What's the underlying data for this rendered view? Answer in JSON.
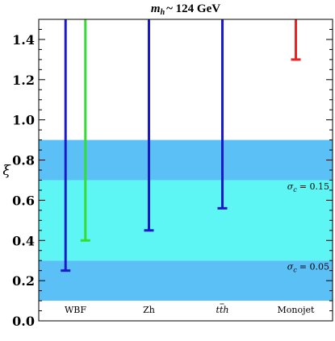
{
  "chart_data": {
    "type": "errorbar",
    "title": {
      "main": "m",
      "sub": "h",
      "rest": "~ 124 GeV"
    },
    "ylabel": "ξ",
    "xlabel": "",
    "ylim": [
      0.0,
      1.5
    ],
    "yticks": [
      "0.0",
      "0.2",
      "0.4",
      "0.6",
      "0.8",
      "1.0",
      "1.2",
      "1.4"
    ],
    "grid": false,
    "categories": [
      {
        "id": "wbf",
        "label": "WBF"
      },
      {
        "id": "zh",
        "label": "Zh"
      },
      {
        "id": "tth",
        "label": "tth",
        "parts": [
          "t",
          "t",
          "h"
        ]
      },
      {
        "id": "monojet",
        "label": "Monojet"
      }
    ],
    "bands": [
      {
        "from": 0.1,
        "to": 0.3,
        "color": "#5ac0f6"
      },
      {
        "from": 0.3,
        "to": 0.7,
        "color": "#5ef5f5"
      },
      {
        "from": 0.7,
        "to": 0.9,
        "color": "#5ac0f6"
      }
    ],
    "band_labels": [
      {
        "prefix": "σ",
        "sub": "c",
        "value": "= 0.15",
        "y": 0.67
      },
      {
        "prefix": "σ",
        "sub": "c",
        "value": "= 0.05",
        "y": 0.27
      }
    ],
    "series": [
      {
        "category": "wbf",
        "offset": -0.27,
        "color": "#1a1acc",
        "lower": 0.25,
        "upper": 1.5
      },
      {
        "category": "wbf",
        "offset": 0.27,
        "color": "#33dd33",
        "lower": 0.4,
        "upper": 1.5
      },
      {
        "category": "zh",
        "offset": 0.0,
        "color": "#1a1acc",
        "lower": 0.45,
        "upper": 1.5
      },
      {
        "category": "tth",
        "offset": 0.0,
        "color": "#1a1acc",
        "lower": 0.56,
        "upper": 1.5
      },
      {
        "category": "monojet",
        "offset": 0.0,
        "color": "#ee2222",
        "lower": 1.3,
        "upper": 1.5
      }
    ]
  }
}
